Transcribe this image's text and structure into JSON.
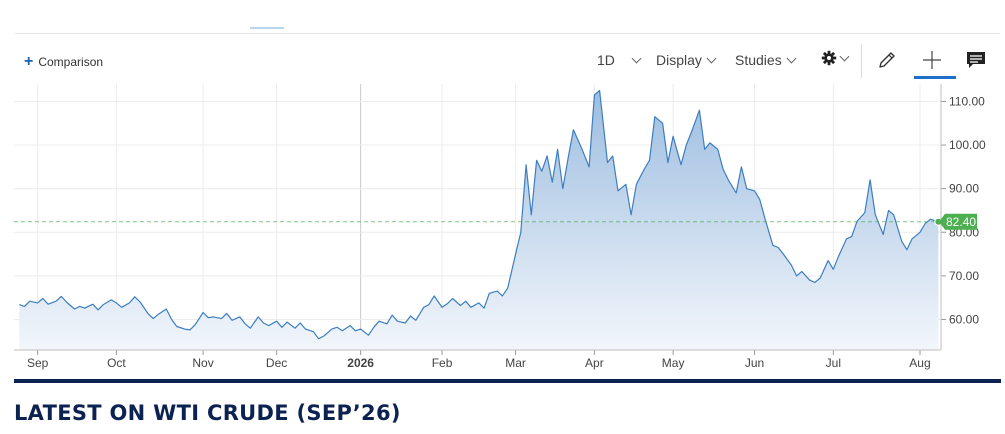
{
  "toolbar": {
    "comparison_label": "Comparison",
    "interval_label": "1D",
    "display_label": "Display",
    "studies_label": "Studies"
  },
  "colors": {
    "line": "#3d7ebf",
    "area_top": "#9dbde0",
    "area_bottom": "#f2f6fb",
    "current_price": "#4caf50",
    "brand_navy": "#0c2250",
    "accent_blue": "#1f6fc9"
  },
  "heading": "LATEST ON WTI CRUDE (SEP’26)",
  "chart_data": {
    "type": "area",
    "title": "",
    "xlabel": "",
    "ylabel": "",
    "x_tick_labels": [
      "Sep",
      "Oct",
      "Nov",
      "Dec",
      "2026",
      "Feb",
      "Mar",
      "Apr",
      "May",
      "Jun",
      "Jul",
      "Aug"
    ],
    "y_tick_labels": [
      "60.00",
      "70.00",
      "80.00",
      "90.00",
      "100.00",
      "110.00"
    ],
    "y_ticks": [
      60,
      70,
      80,
      90,
      100,
      110
    ],
    "ylim": [
      53,
      114
    ],
    "current_price": 82.4,
    "current_price_label": "82.40",
    "grid": true,
    "axis_position": "right",
    "points": [
      [
        "2025-08-25",
        63.4
      ],
      [
        "2025-08-27",
        63.0
      ],
      [
        "2025-08-29",
        64.2
      ],
      [
        "2025-09-01",
        63.8
      ],
      [
        "2025-09-03",
        64.8
      ],
      [
        "2025-09-05",
        63.5
      ],
      [
        "2025-09-08",
        64.2
      ],
      [
        "2025-09-10",
        65.3
      ],
      [
        "2025-09-12",
        64.0
      ],
      [
        "2025-09-15",
        62.4
      ],
      [
        "2025-09-17",
        63.0
      ],
      [
        "2025-09-19",
        62.6
      ],
      [
        "2025-09-22",
        63.5
      ],
      [
        "2025-09-24",
        62.2
      ],
      [
        "2025-09-26",
        63.4
      ],
      [
        "2025-09-29",
        64.5
      ],
      [
        "2025-10-01",
        63.8
      ],
      [
        "2025-10-03",
        62.8
      ],
      [
        "2025-10-06",
        63.8
      ],
      [
        "2025-10-08",
        65.2
      ],
      [
        "2025-10-10",
        64.0
      ],
      [
        "2025-10-13",
        61.4
      ],
      [
        "2025-10-15",
        60.2
      ],
      [
        "2025-10-17",
        61.2
      ],
      [
        "2025-10-20",
        62.4
      ],
      [
        "2025-10-22",
        60.0
      ],
      [
        "2025-10-24",
        58.4
      ],
      [
        "2025-10-27",
        57.8
      ],
      [
        "2025-10-29",
        57.6
      ],
      [
        "2025-10-31",
        58.8
      ],
      [
        "2025-11-03",
        61.6
      ],
      [
        "2025-11-05",
        60.4
      ],
      [
        "2025-11-07",
        60.6
      ],
      [
        "2025-11-10",
        60.2
      ],
      [
        "2025-11-12",
        61.4
      ],
      [
        "2025-11-14",
        59.8
      ],
      [
        "2025-11-17",
        60.6
      ],
      [
        "2025-11-19",
        59.0
      ],
      [
        "2025-11-21",
        58.0
      ],
      [
        "2025-11-24",
        60.6
      ],
      [
        "2025-11-26",
        59.2
      ],
      [
        "2025-11-28",
        58.6
      ],
      [
        "2025-12-01",
        59.6
      ],
      [
        "2025-12-03",
        58.2
      ],
      [
        "2025-12-05",
        59.4
      ],
      [
        "2025-12-08",
        58.0
      ],
      [
        "2025-12-10",
        59.2
      ],
      [
        "2025-12-12",
        57.8
      ],
      [
        "2025-12-15",
        57.2
      ],
      [
        "2025-12-17",
        55.6
      ],
      [
        "2025-12-19",
        56.2
      ],
      [
        "2025-12-22",
        57.8
      ],
      [
        "2025-12-24",
        58.2
      ],
      [
        "2025-12-26",
        57.4
      ],
      [
        "2025-12-29",
        58.6
      ],
      [
        "2025-12-31",
        57.4
      ],
      [
        "2026-01-02",
        57.8
      ],
      [
        "2026-01-05",
        56.4
      ],
      [
        "2026-01-07",
        58.2
      ],
      [
        "2026-01-09",
        59.6
      ],
      [
        "2026-01-12",
        59.0
      ],
      [
        "2026-01-14",
        61.0
      ],
      [
        "2026-01-16",
        59.6
      ],
      [
        "2026-01-19",
        59.2
      ],
      [
        "2026-01-21",
        60.8
      ],
      [
        "2026-01-23",
        59.8
      ],
      [
        "2026-01-26",
        62.8
      ],
      [
        "2026-01-28",
        63.4
      ],
      [
        "2026-01-30",
        65.4
      ],
      [
        "2026-02-02",
        62.8
      ],
      [
        "2026-02-04",
        63.6
      ],
      [
        "2026-02-06",
        64.8
      ],
      [
        "2026-02-09",
        63.2
      ],
      [
        "2026-02-11",
        64.2
      ],
      [
        "2026-02-13",
        62.8
      ],
      [
        "2026-02-16",
        63.8
      ],
      [
        "2026-02-18",
        62.6
      ],
      [
        "2026-02-20",
        66.0
      ],
      [
        "2026-02-23",
        66.5
      ],
      [
        "2026-02-25",
        65.4
      ],
      [
        "2026-02-27",
        67.2
      ],
      [
        "2026-03-02",
        75.0
      ],
      [
        "2026-03-04",
        80.0
      ],
      [
        "2026-03-06",
        95.5
      ],
      [
        "2026-03-08",
        84.0
      ],
      [
        "2026-03-10",
        96.5
      ],
      [
        "2026-03-12",
        94.0
      ],
      [
        "2026-03-14",
        97.5
      ],
      [
        "2026-03-16",
        91.5
      ],
      [
        "2026-03-18",
        99.0
      ],
      [
        "2026-03-20",
        90.0
      ],
      [
        "2026-03-22",
        97.0
      ],
      [
        "2026-03-24",
        103.5
      ],
      [
        "2026-03-27",
        99.5
      ],
      [
        "2026-03-30",
        95.0
      ],
      [
        "2026-04-01",
        111.5
      ],
      [
        "2026-04-03",
        112.5
      ],
      [
        "2026-04-06",
        96.0
      ],
      [
        "2026-04-08",
        97.5
      ],
      [
        "2026-04-10",
        89.5
      ],
      [
        "2026-04-13",
        91.0
      ],
      [
        "2026-04-15",
        84.0
      ],
      [
        "2026-04-17",
        91.0
      ],
      [
        "2026-04-20",
        94.5
      ],
      [
        "2026-04-22",
        96.5
      ],
      [
        "2026-04-24",
        106.5
      ],
      [
        "2026-04-27",
        105.0
      ],
      [
        "2026-04-29",
        96.0
      ],
      [
        "2026-05-01",
        102.0
      ],
      [
        "2026-05-04",
        95.5
      ],
      [
        "2026-05-06",
        100.0
      ],
      [
        "2026-05-08",
        103.0
      ],
      [
        "2026-05-11",
        108.0
      ],
      [
        "2026-05-13",
        99.0
      ],
      [
        "2026-05-15",
        100.5
      ],
      [
        "2026-05-18",
        99.0
      ],
      [
        "2026-05-20",
        94.5
      ],
      [
        "2026-05-22",
        92.0
      ],
      [
        "2026-05-25",
        89.0
      ],
      [
        "2026-05-27",
        95.0
      ],
      [
        "2026-05-29",
        90.0
      ],
      [
        "2026-06-01",
        89.5
      ],
      [
        "2026-06-03",
        87.5
      ],
      [
        "2026-06-05",
        83.0
      ],
      [
        "2026-06-08",
        77.0
      ],
      [
        "2026-06-10",
        76.5
      ],
      [
        "2026-06-12",
        75.0
      ],
      [
        "2026-06-15",
        72.5
      ],
      [
        "2026-06-17",
        70.0
      ],
      [
        "2026-06-19",
        71.0
      ],
      [
        "2026-06-22",
        69.0
      ],
      [
        "2026-06-24",
        68.5
      ],
      [
        "2026-06-26",
        69.5
      ],
      [
        "2026-06-29",
        73.5
      ],
      [
        "2026-07-01",
        71.5
      ],
      [
        "2026-07-03",
        74.5
      ],
      [
        "2026-07-06",
        78.5
      ],
      [
        "2026-07-08",
        79.0
      ],
      [
        "2026-07-10",
        82.5
      ],
      [
        "2026-07-13",
        84.5
      ],
      [
        "2026-07-15",
        92.0
      ],
      [
        "2026-07-17",
        84.0
      ],
      [
        "2026-07-20",
        79.5
      ],
      [
        "2026-07-22",
        85.0
      ],
      [
        "2026-07-24",
        84.0
      ],
      [
        "2026-07-27",
        78.0
      ],
      [
        "2026-07-29",
        76.0
      ],
      [
        "2026-07-31",
        78.5
      ],
      [
        "2026-08-03",
        80.0
      ],
      [
        "2026-08-05",
        82.0
      ],
      [
        "2026-08-07",
        83.0
      ],
      [
        "2026-08-10",
        82.4
      ]
    ]
  }
}
